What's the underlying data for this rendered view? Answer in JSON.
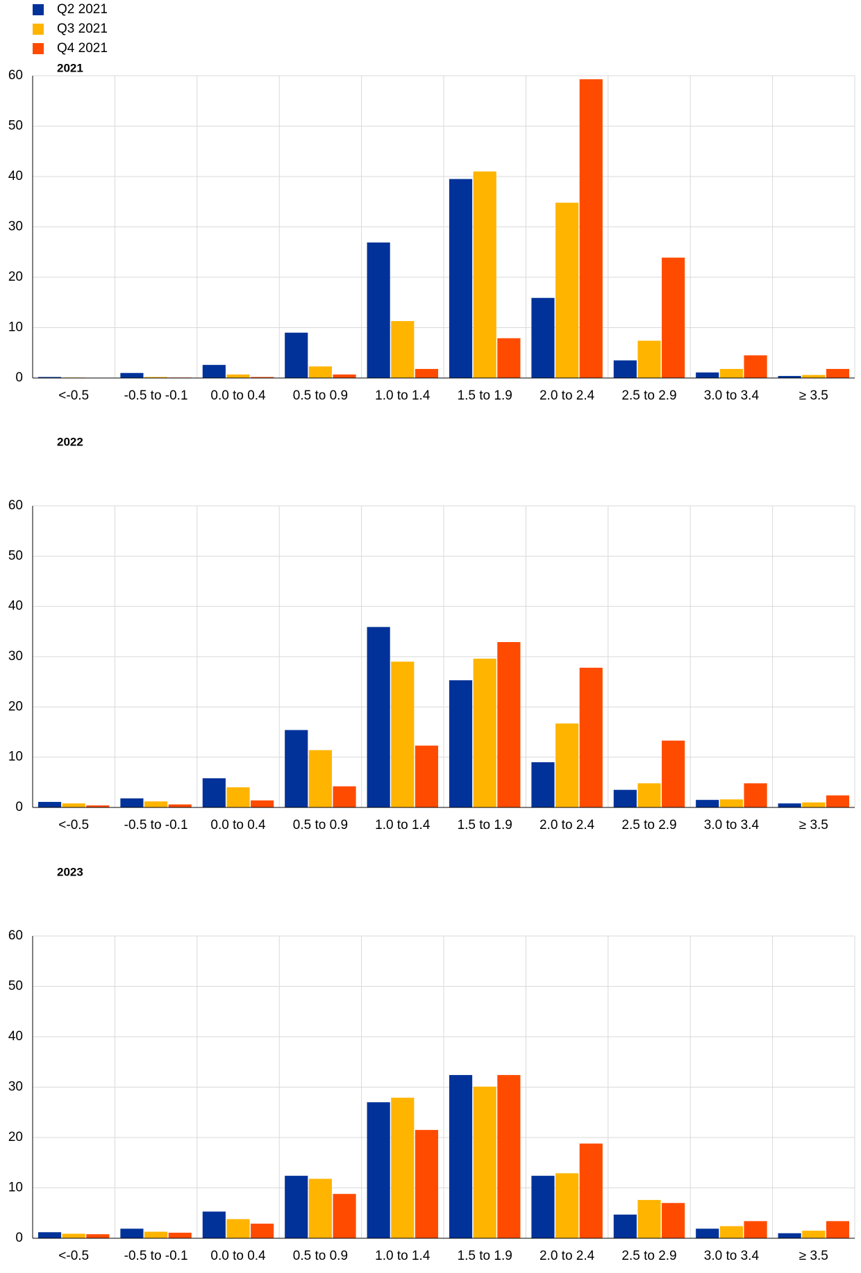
{
  "chart_data": [
    {
      "type": "bar",
      "title": "2021",
      "categories": [
        "<-0.5",
        "-0.5 to -0.1",
        "0.0 to 0.4",
        "0.5 to 0.9",
        "1.0 to 1.4",
        "1.5 to 1.9",
        "2.0 to 2.4",
        "2.5 to 2.9",
        "3.0 to 3.4",
        "≥ 3.5"
      ],
      "series": [
        {
          "name": "Q2 2021",
          "color": "#003299",
          "values": [
            0.2,
            1.0,
            2.6,
            9.0,
            26.9,
            39.5,
            15.9,
            3.5,
            1.1,
            0.4
          ]
        },
        {
          "name": "Q3 2021",
          "color": "#ffb400",
          "values": [
            0.1,
            0.2,
            0.7,
            2.3,
            11.3,
            41.0,
            34.8,
            7.4,
            1.8,
            0.6
          ]
        },
        {
          "name": "Q4 2021",
          "color": "#ff4b00",
          "values": [
            0,
            0.1,
            0.2,
            0.7,
            1.8,
            7.9,
            59.3,
            23.9,
            4.5,
            1.8
          ]
        }
      ],
      "ylim": [
        0,
        60
      ],
      "yticks": [
        0,
        10,
        20,
        30,
        40,
        50,
        60
      ],
      "grid": true
    },
    {
      "type": "bar",
      "title": "2022",
      "categories": [
        "<-0.5",
        "-0.5 to -0.1",
        "0.0 to 0.4",
        "0.5 to 0.9",
        "1.0 to 1.4",
        "1.5 to 1.9",
        "2.0 to 2.4",
        "2.5 to 2.9",
        "3.0 to 3.4",
        "≥ 3.5"
      ],
      "series": [
        {
          "color": "#003299",
          "values": [
            1.1,
            1.8,
            5.8,
            15.4,
            35.9,
            25.3,
            9.0,
            3.5,
            1.5,
            0.8
          ]
        },
        {
          "color": "#ffb400",
          "values": [
            0.8,
            1.2,
            4.0,
            11.4,
            29.0,
            29.6,
            16.7,
            4.8,
            1.6,
            1.0
          ]
        },
        {
          "color": "#ff4b00",
          "values": [
            0.4,
            0.6,
            1.4,
            4.2,
            12.3,
            32.9,
            27.8,
            13.3,
            4.8,
            2.4
          ]
        }
      ],
      "ylim": [
        0,
        60
      ],
      "yticks": [
        0,
        10,
        20,
        30,
        40,
        50,
        60
      ],
      "grid": true
    },
    {
      "type": "bar",
      "title": "2023",
      "categories": [
        "<-0.5",
        "-0.5 to -0.1",
        "0.0 to 0.4",
        "0.5 to 0.9",
        "1.0 to 1.4",
        "1.5 to 1.9",
        "2.0 to 2.4",
        "2.5 to 2.9",
        "3.0 to 3.4",
        "≥ 3.5"
      ],
      "series": [
        {
          "color": "#003299",
          "values": [
            1.2,
            1.9,
            5.3,
            12.4,
            27.0,
            32.4,
            12.4,
            4.7,
            1.9,
            1.0
          ]
        },
        {
          "color": "#ffb400",
          "values": [
            0.9,
            1.3,
            3.8,
            11.8,
            27.9,
            30.1,
            12.9,
            7.6,
            2.4,
            1.5
          ]
        },
        {
          "color": "#ff4b00",
          "values": [
            0.8,
            1.1,
            2.9,
            8.8,
            21.5,
            32.4,
            18.8,
            7.0,
            3.4,
            3.4
          ]
        }
      ],
      "ylim": [
        0,
        60
      ],
      "yticks": [
        0,
        10,
        20,
        30,
        40,
        50,
        60
      ],
      "grid": true
    }
  ]
}
